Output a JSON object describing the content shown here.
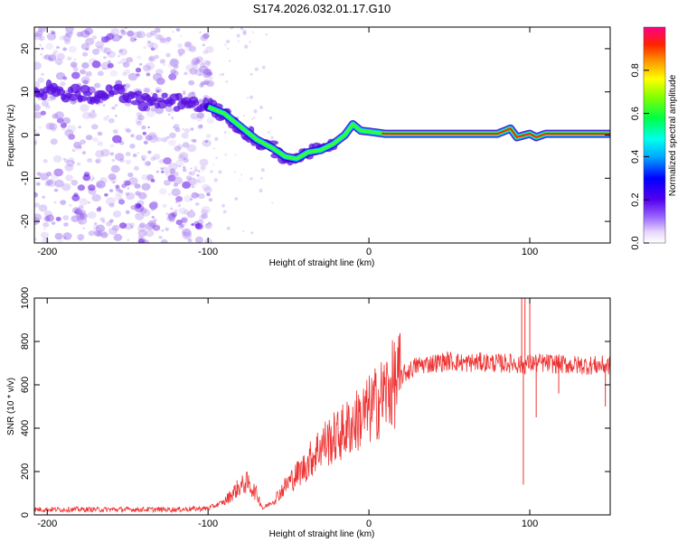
{
  "title": "S174.2026.032.01.17.G10",
  "chart_data": [
    {
      "type": "heatmap",
      "name": "spectrogram",
      "xlabel": "Height of straight line (km)",
      "ylabel": "Frequency (Hz)",
      "xlim": [
        -208,
        150
      ],
      "ylim": [
        -25,
        25
      ],
      "xticks": [
        "-200",
        "-100",
        "0",
        "100"
      ],
      "yticks": [
        "-20",
        "-10",
        "0",
        "10",
        "20"
      ],
      "colorbar": {
        "label": "Normalized spectral amplitude",
        "range": [
          0,
          1
        ],
        "ticks": [
          "0.0",
          "0.2",
          "0.4",
          "0.6",
          "0.8"
        ]
      },
      "ridge": {
        "x": [
          -208,
          -190,
          -170,
          -155,
          -140,
          -120,
          -100,
          -90,
          -80,
          -70,
          -60,
          -52,
          -45,
          -38,
          -30,
          -22,
          -15,
          -10,
          -5,
          0,
          10,
          40,
          80,
          88,
          90,
          92,
          100,
          104,
          110,
          150
        ],
        "y": [
          11,
          9.5,
          9,
          10,
          8,
          7.5,
          6.5,
          5,
          2,
          -1,
          -3,
          -5,
          -5.5,
          -4,
          -3.5,
          -2,
          0,
          2.5,
          1,
          0.8,
          0.3,
          0.3,
          0.3,
          1.5,
          0.5,
          -0.5,
          0.3,
          -0.5,
          0.3,
          0.3
        ]
      }
    },
    {
      "type": "line",
      "name": "snr",
      "xlabel": "Height of straight line (km)",
      "ylabel": "SNR (10 * v/v)",
      "xlim": [
        -208,
        150
      ],
      "ylim": [
        0,
        1000
      ],
      "xticks": [
        "-200",
        "-100",
        "0",
        "100"
      ],
      "yticks": [
        "0",
        "200",
        "400",
        "600",
        "800",
        "1000"
      ],
      "color": "#ee3333",
      "x": [
        -208,
        -180,
        -150,
        -120,
        -100,
        -90,
        -82,
        -76,
        -70,
        -66,
        -60,
        -50,
        -40,
        -30,
        -20,
        -10,
        0,
        10,
        20,
        30,
        40,
        50,
        60,
        70,
        80,
        90,
        95,
        100,
        110,
        120,
        130,
        140,
        150
      ],
      "values": [
        25,
        25,
        25,
        25,
        30,
        60,
        120,
        150,
        100,
        30,
        60,
        150,
        220,
        320,
        360,
        420,
        480,
        560,
        640,
        690,
        700,
        710,
        700,
        705,
        700,
        700,
        690,
        700,
        700,
        695,
        690,
        690,
        690
      ]
    }
  ]
}
